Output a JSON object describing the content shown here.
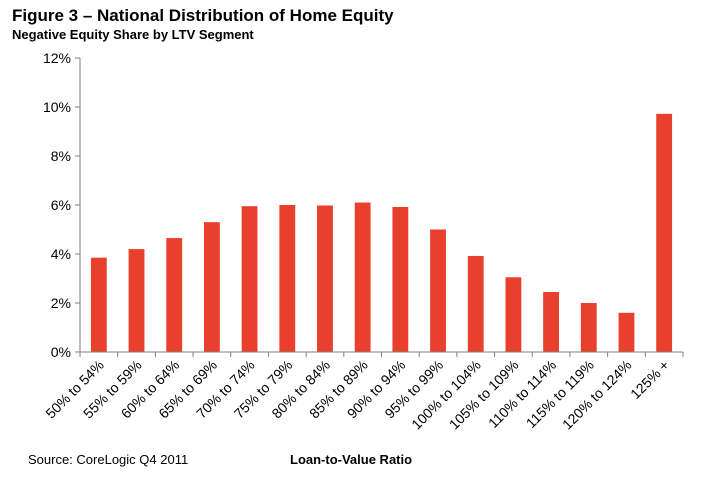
{
  "title": "Figure 3 – National Distribution of Home Equity",
  "subtitle": "Negative Equity Share by LTV Segment",
  "source": "Source: CoreLogic Q4 2011",
  "colors": {
    "bar": "#e8402c",
    "axis": "#808080"
  },
  "chart_data": {
    "type": "bar",
    "title": "Figure 3 – National Distribution of Home Equity",
    "subtitle": "Negative Equity Share by LTV Segment",
    "xlabel": "Loan-to-Value Ratio",
    "ylabel": "",
    "ylim": [
      0,
      12
    ],
    "yticks": [
      "0%",
      "2%",
      "4%",
      "6%",
      "8%",
      "10%",
      "12%"
    ],
    "grid": false,
    "legend": "none",
    "categories": [
      "50% to 54%",
      "55% to 59%",
      "60% to 64%",
      "65% to 69%",
      "70% to 74%",
      "75% to 79%",
      "80% to 84%",
      "85% to 89%",
      "90% to 94%",
      "95% to 99%",
      "100% to 104%",
      "105% to 109%",
      "110% to 114%",
      "115% to 119%",
      "120% to 124%",
      "125% +"
    ],
    "values": [
      3.85,
      4.2,
      4.65,
      5.3,
      5.95,
      6.0,
      5.98,
      6.1,
      5.92,
      5.0,
      3.92,
      3.05,
      2.45,
      2.0,
      1.6,
      9.72
    ]
  }
}
